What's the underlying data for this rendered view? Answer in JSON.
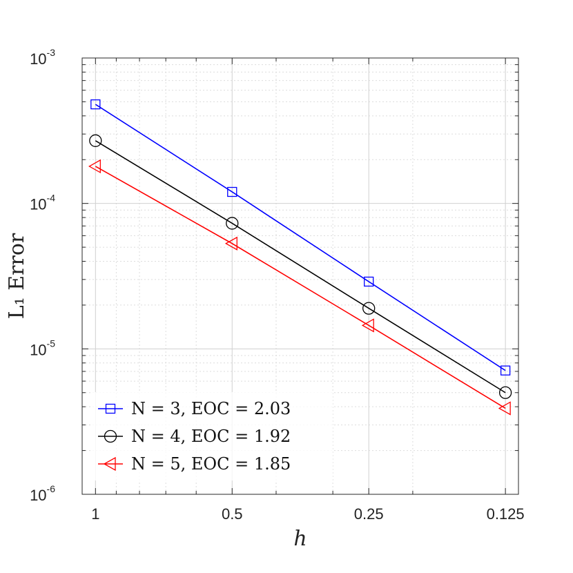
{
  "chart_data": {
    "type": "line",
    "x": [
      1,
      0.5,
      0.25,
      0.125
    ],
    "x_tick_labels": [
      "1",
      "0.5",
      "0.25",
      "0.125"
    ],
    "xscale": "log",
    "x_direction": "reversed",
    "xlim": [
      1.07,
      0.117
    ],
    "yscale": "log",
    "ylim": [
      1e-06,
      0.001
    ],
    "y_tick_labels": [
      {
        "base": "10",
        "exp": "-3"
      },
      {
        "base": "10",
        "exp": "-4"
      },
      {
        "base": "10",
        "exp": "-5"
      },
      {
        "base": "10",
        "exp": "-6"
      }
    ],
    "xlabel": "h",
    "ylabel": "L₁ Error",
    "grid": "major and minor",
    "legend_position": "bottom-left",
    "series": [
      {
        "name": "N = 3, EOC = 2.03",
        "color": "#0000ff",
        "marker": "square",
        "values": [
          0.00048,
          0.00012,
          2.9e-05,
          7.1e-06
        ]
      },
      {
        "name": "N = 4, EOC = 1.92",
        "color": "#000000",
        "marker": "circle",
        "values": [
          0.00027,
          7.3e-05,
          1.9e-05,
          5e-06
        ]
      },
      {
        "name": "N = 5, EOC = 1.85",
        "color": "#ff0000",
        "marker": "triangle-left",
        "values": [
          0.00018,
          5.3e-05,
          1.45e-05,
          3.9e-06
        ]
      }
    ]
  }
}
